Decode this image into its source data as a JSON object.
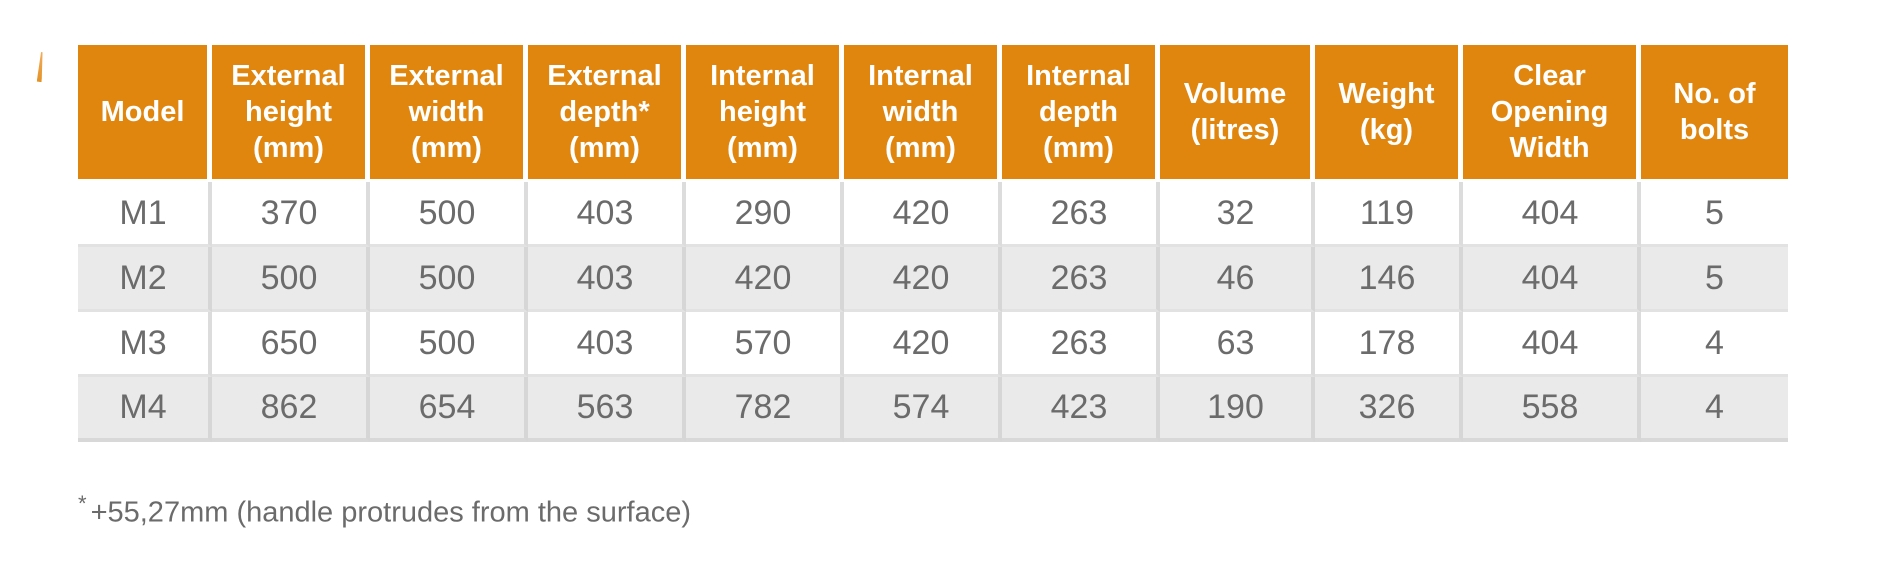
{
  "accent_color": "#e0860e",
  "row_alt_color": "#eaeaea",
  "text_color": "#6b6b6b",
  "footnote": {
    "marker": "*",
    "text": "+55,27mm (handle protrudes from the surface)"
  },
  "chart_data": {
    "type": "table",
    "title": "",
    "columns": [
      "Model",
      "External\nheight\n(mm)",
      "External\nwidth\n(mm)",
      "External\ndepth*\n(mm)",
      "Internal\nheight\n(mm)",
      "Internal\nwidth\n(mm)",
      "Internal\ndepth\n(mm)",
      "Volume\n(litres)",
      "Weight\n(kg)",
      "Clear\nOpening\nWidth",
      "No. of\nbolts"
    ],
    "rows": [
      [
        "M1",
        "370",
        "500",
        "403",
        "290",
        "420",
        "263",
        "32",
        "119",
        "404",
        "5"
      ],
      [
        "M2",
        "500",
        "500",
        "403",
        "420",
        "420",
        "263",
        "46",
        "146",
        "404",
        "5"
      ],
      [
        "M3",
        "650",
        "500",
        "403",
        "570",
        "420",
        "263",
        "63",
        "178",
        "404",
        "4"
      ],
      [
        "M4",
        "862",
        "654",
        "563",
        "782",
        "574",
        "423",
        "190",
        "326",
        "558",
        "4"
      ]
    ]
  }
}
